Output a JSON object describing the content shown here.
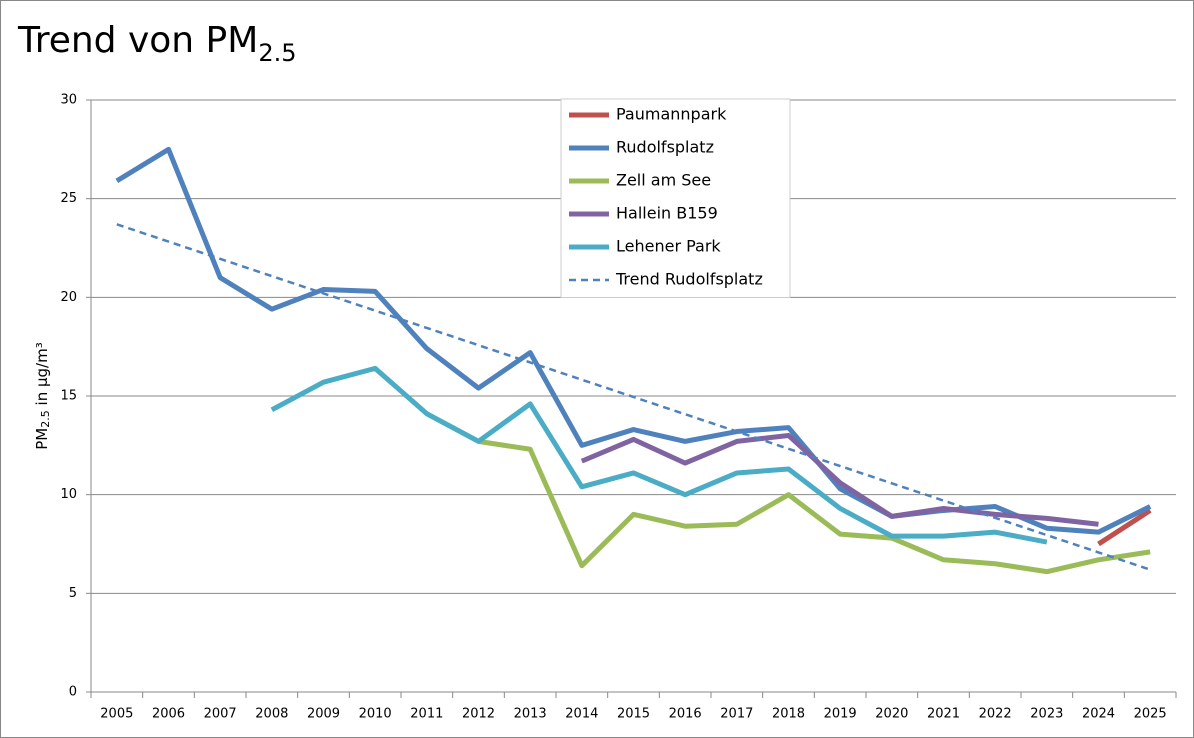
{
  "chart_data": {
    "type": "line",
    "title": {
      "text": "Trend von PM",
      "sub": "2.5"
    },
    "ylabel": {
      "text": "PM",
      "sub": "2.5",
      "rest": " in µg/m³"
    },
    "categories": [
      "2005",
      "2006",
      "2007",
      "2008",
      "2009",
      "2010",
      "2011",
      "2012",
      "2013",
      "2014",
      "2015",
      "2016",
      "2017",
      "2018",
      "2019",
      "2020",
      "2021",
      "2022",
      "2023",
      "2024",
      "2025"
    ],
    "series": [
      {
        "name": "Paumannpark",
        "color": "#c0504d",
        "values": [
          null,
          null,
          null,
          null,
          null,
          null,
          null,
          null,
          null,
          null,
          null,
          null,
          null,
          null,
          null,
          null,
          null,
          null,
          null,
          7.5,
          9.2
        ]
      },
      {
        "name": "Rudolfsplatz",
        "color": "#4f81bd",
        "values": [
          25.9,
          27.5,
          21.0,
          19.4,
          20.4,
          20.3,
          17.4,
          15.4,
          17.2,
          12.5,
          13.3,
          12.7,
          13.2,
          13.4,
          10.3,
          8.9,
          9.2,
          9.4,
          8.3,
          8.1,
          9.4
        ]
      },
      {
        "name": "Zell am See",
        "color": "#9bbb59",
        "values": [
          null,
          null,
          null,
          null,
          null,
          null,
          null,
          12.7,
          12.3,
          6.4,
          9.0,
          8.4,
          8.5,
          10.0,
          8.0,
          7.8,
          6.7,
          6.5,
          6.1,
          6.7,
          7.1
        ]
      },
      {
        "name": "Hallein B159",
        "color": "#8064a2",
        "values": [
          null,
          null,
          null,
          null,
          null,
          null,
          null,
          null,
          null,
          11.7,
          12.8,
          11.6,
          12.7,
          13.0,
          10.6,
          8.9,
          9.3,
          9.0,
          8.8,
          8.5,
          null
        ]
      },
      {
        "name": "Lehener Park",
        "color": "#4bacc6",
        "values": [
          null,
          null,
          null,
          14.3,
          15.7,
          16.4,
          14.1,
          12.7,
          14.6,
          10.4,
          11.1,
          10.0,
          11.1,
          11.3,
          9.3,
          7.9,
          7.9,
          8.1,
          7.6,
          null,
          null
        ]
      },
      {
        "name": "Trend Rudolfsplatz",
        "color": "#4f81bd",
        "dashed": true,
        "values": [
          23.7,
          22.825,
          21.95,
          21.075,
          20.2,
          19.325,
          18.45,
          17.575,
          16.7,
          15.825,
          14.95,
          14.075,
          13.2,
          12.325,
          11.45,
          10.575,
          9.7,
          8.825,
          7.95,
          7.075,
          6.2
        ]
      }
    ],
    "ylim": [
      0,
      30
    ],
    "yticks": [
      0,
      5,
      10,
      15,
      20,
      25,
      30
    ],
    "grid": true,
    "legend": "top"
  }
}
